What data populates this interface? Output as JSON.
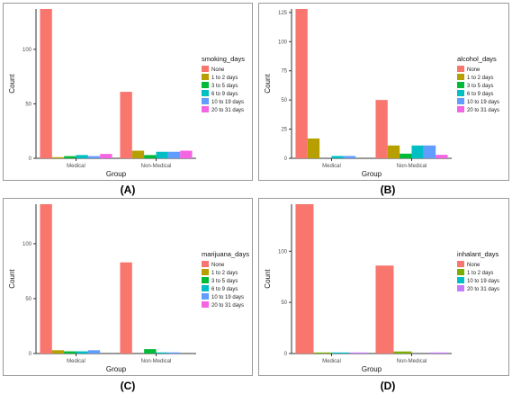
{
  "colors": {
    "None": "#F8766D",
    "1 to 2 days": "#C49A00",
    "3 to 5 days": "#53B400",
    "6 to 9 days": "#00C094",
    "10 to 19 days": "#00B6EB",
    "20 to 31 days": "#FB61D7",
    "10 to 19 days (alcohol)": "#A58AFF"
  },
  "chart_data": [
    {
      "type": "bar",
      "caption": "(A)",
      "xlabel": "Group",
      "ylabel": "Count",
      "categories": [
        "Medical",
        "Non-Medical"
      ],
      "ylim": [
        0,
        137
      ],
      "yticks": [
        0,
        50,
        100
      ],
      "legend_title": "smoking_days",
      "series": [
        {
          "name": "None",
          "color": "#F8766D",
          "values": [
            137,
            61
          ]
        },
        {
          "name": "1 to 2 days",
          "color": "#B79F00",
          "values": [
            1,
            7
          ]
        },
        {
          "name": "3 to 5 days",
          "color": "#00BA38",
          "values": [
            2,
            3
          ]
        },
        {
          "name": "6 to 9 days",
          "color": "#00BFC4",
          "values": [
            3,
            6
          ]
        },
        {
          "name": "10 to 19 days",
          "color": "#619CFF",
          "values": [
            2,
            6
          ]
        },
        {
          "name": "20 to 31 days",
          "color": "#F564E3",
          "values": [
            4,
            7
          ]
        }
      ]
    },
    {
      "type": "bar",
      "caption": "(B)",
      "xlabel": "Group",
      "ylabel": "Count",
      "categories": [
        "Medical",
        "Non-Medical"
      ],
      "ylim": [
        0,
        128
      ],
      "yticks": [
        0,
        25,
        50,
        75,
        100,
        125
      ],
      "legend_title": "alcohol_days",
      "series": [
        {
          "name": "None",
          "color": "#F8766D",
          "values": [
            128,
            50
          ]
        },
        {
          "name": "1 to 2 days",
          "color": "#B79F00",
          "values": [
            17,
            11
          ]
        },
        {
          "name": "3 to 5 days",
          "color": "#00BA38",
          "values": [
            0,
            4
          ]
        },
        {
          "name": "6 to 9 days",
          "color": "#00BFC4",
          "values": [
            2,
            11
          ]
        },
        {
          "name": "10 to 19 days",
          "color": "#619CFF",
          "values": [
            2,
            11
          ]
        },
        {
          "name": "20 to 31 days",
          "color": "#F564E3",
          "values": [
            0,
            3
          ]
        }
      ]
    },
    {
      "type": "bar",
      "caption": "(C)",
      "xlabel": "Group",
      "ylabel": "Count",
      "categories": [
        "Medical",
        "Non-Medical"
      ],
      "ylim": [
        0,
        136
      ],
      "yticks": [
        0,
        50,
        100
      ],
      "legend_title": "marijuana_days",
      "series": [
        {
          "name": "None",
          "color": "#F8766D",
          "values": [
            136,
            83
          ]
        },
        {
          "name": "1 to 2 days",
          "color": "#B79F00",
          "values": [
            3,
            0
          ]
        },
        {
          "name": "3 to 5 days",
          "color": "#00BA38",
          "values": [
            2,
            4
          ]
        },
        {
          "name": "6 to 9 days",
          "color": "#00BFC4",
          "values": [
            2,
            1
          ]
        },
        {
          "name": "10 to 19 days",
          "color": "#619CFF",
          "values": [
            3,
            1
          ]
        },
        {
          "name": "20 to 31 days",
          "color": "#F564E3",
          "values": [
            0,
            0
          ]
        }
      ]
    },
    {
      "type": "bar",
      "caption": "(D)",
      "xlabel": "Group",
      "ylabel": "Count",
      "categories": [
        "Medical",
        "Non-Medical"
      ],
      "ylim": [
        0,
        146
      ],
      "yticks": [
        0,
        50,
        100
      ],
      "legend_title": "inhalant_days",
      "series": [
        {
          "name": "None",
          "color": "#F8766D",
          "values": [
            146,
            86
          ]
        },
        {
          "name": "1 to 2 days",
          "color": "#7CAE00",
          "values": [
            1,
            2
          ]
        },
        {
          "name": "10 to 19 days",
          "color": "#00BFC4",
          "values": [
            1,
            0
          ]
        },
        {
          "name": "20 to 31 days",
          "color": "#C77CFF",
          "values": [
            1,
            1
          ]
        }
      ]
    }
  ]
}
